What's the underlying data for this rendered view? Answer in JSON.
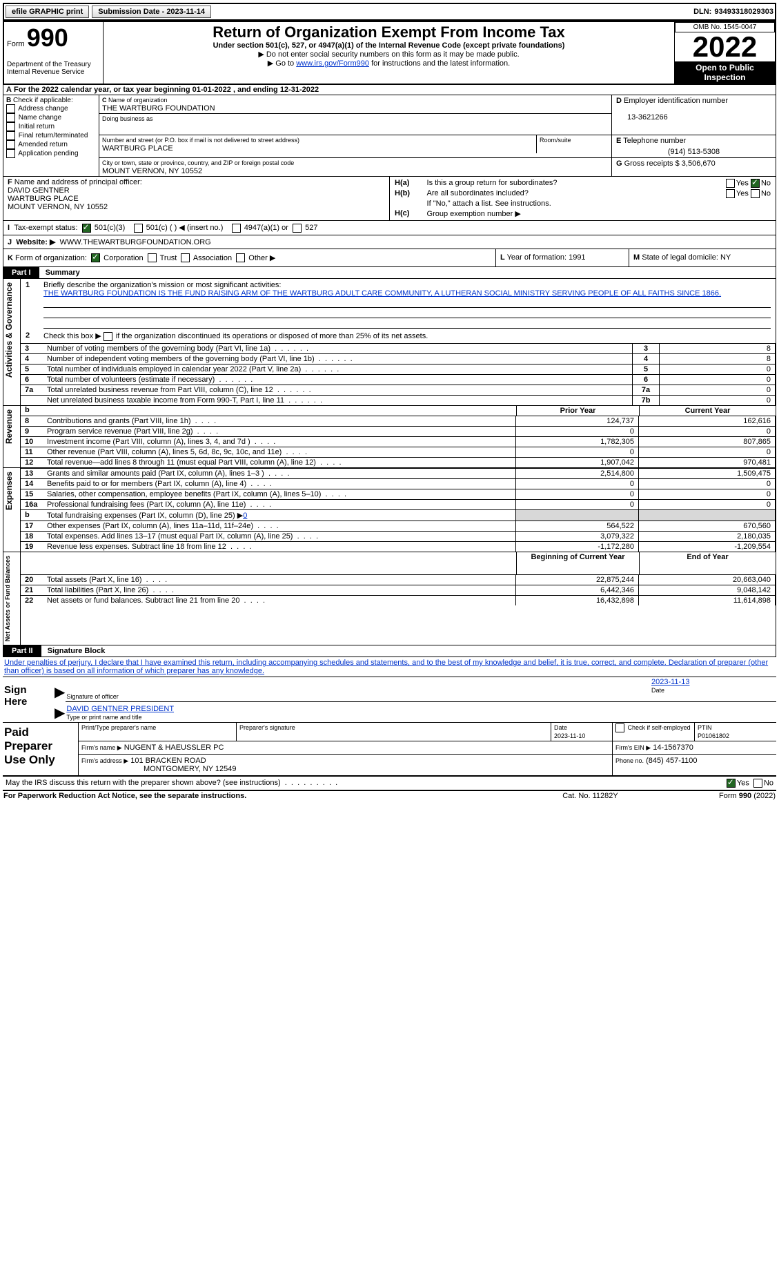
{
  "topbar": {
    "efile": "efile GRAPHIC print",
    "submission": "Submission Date - 2023-11-14",
    "dln_label": "DLN:",
    "dln": "93493318029303"
  },
  "header": {
    "form_word": "Form",
    "form_num": "990",
    "dept": "Department of the Treasury",
    "irs": "Internal Revenue Service",
    "title": "Return of Organization Exempt From Income Tax",
    "subtitle": "Under section 501(c), 527, or 4947(a)(1) of the Internal Revenue Code (except private foundations)",
    "instr1": "▶ Do not enter social security numbers on this form as it may be made public.",
    "instr2_pre": "▶ Go to ",
    "instr2_link": "www.irs.gov/Form990",
    "instr2_post": " for instructions and the latest information.",
    "omb": "OMB No. 1545-0047",
    "year": "2022",
    "inspection": "Open to Public Inspection"
  },
  "A": {
    "text_pre": "For the 2022 calendar year, or tax year beginning ",
    "begin": "01-01-2022",
    "text_mid": " , and ending ",
    "end": "12-31-2022"
  },
  "B": {
    "label": "Check if applicable:",
    "opts": [
      "Address change",
      "Name change",
      "Initial return",
      "Final return/terminated",
      "Amended return",
      "Application pending"
    ]
  },
  "C": {
    "name_label": "Name of organization",
    "name": "THE WARTBURG FOUNDATION",
    "dba_label": "Doing business as",
    "street_label": "Number and street (or P.O. box if mail is not delivered to street address)",
    "street": "WARTBURG PLACE",
    "room_label": "Room/suite",
    "city_label": "City or town, state or province, country, and ZIP or foreign postal code",
    "city": "MOUNT VERNON, NY  10552"
  },
  "D": {
    "label": "Employer identification number",
    "value": "13-3621266"
  },
  "E": {
    "label": "Telephone number",
    "value": "(914) 513-5308"
  },
  "G": {
    "label": "Gross receipts $",
    "value": "3,506,670"
  },
  "F": {
    "label": "Name and address of principal officer:",
    "name": "DAVID GENTNER",
    "street": "WARTBURG PLACE",
    "city": "MOUNT VERNON, NY  10552"
  },
  "H": {
    "a": "Is this a group return for subordinates?",
    "b": "Are all subordinates included?",
    "b_note": "If \"No,\" attach a list. See instructions.",
    "c": "Group exemption number ▶"
  },
  "I": {
    "label": "Tax-exempt status:",
    "opt1": "501(c)(3)",
    "opt2": "501(c) ( ) ◀ (insert no.)",
    "opt3": "4947(a)(1) or",
    "opt4": "527"
  },
  "J": {
    "label": "Website: ▶",
    "value": "WWW.THEWARTBURGFOUNDATION.ORG"
  },
  "K": {
    "label": "Form of organization:",
    "opts": [
      "Corporation",
      "Trust",
      "Association",
      "Other ▶"
    ]
  },
  "L": {
    "label": "Year of formation:",
    "value": "1991"
  },
  "M": {
    "label": "State of legal domicile:",
    "value": "NY"
  },
  "part1": {
    "header": "Part I",
    "title": "Summary",
    "line1_label": "Briefly describe the organization's mission or most significant activities:",
    "line1_text": "THE WARTBURG FOUNDATION IS THE FUND RAISING ARM OF THE WARTBURG ADULT CARE COMMUNITY, A LUTHERAN SOCIAL MINISTRY SERVING PEOPLE OF ALL FAITHS SINCE 1866.",
    "line2": "Check this box ▶",
    "line2_post": "if the organization discontinued its operations or disposed of more than 25% of its net assets.",
    "rows_ag": [
      {
        "n": "3",
        "t": "Number of voting members of the governing body (Part VI, line 1a)",
        "box": "3",
        "v": "8"
      },
      {
        "n": "4",
        "t": "Number of independent voting members of the governing body (Part VI, line 1b)",
        "box": "4",
        "v": "8"
      },
      {
        "n": "5",
        "t": "Total number of individuals employed in calendar year 2022 (Part V, line 2a)",
        "box": "5",
        "v": "0"
      },
      {
        "n": "6",
        "t": "Total number of volunteers (estimate if necessary)",
        "box": "6",
        "v": "0"
      },
      {
        "n": "7a",
        "t": "Total unrelated business revenue from Part VIII, column (C), line 12",
        "box": "7a",
        "v": "0"
      },
      {
        "n": "",
        "t": "Net unrelated business taxable income from Form 990-T, Part I, line 11",
        "box": "7b",
        "v": "0"
      }
    ],
    "col_prior": "Prior Year",
    "col_current": "Current Year",
    "rows_rev": [
      {
        "n": "8",
        "t": "Contributions and grants (Part VIII, line 1h)",
        "p": "124,737",
        "c": "162,616"
      },
      {
        "n": "9",
        "t": "Program service revenue (Part VIII, line 2g)",
        "p": "0",
        "c": "0"
      },
      {
        "n": "10",
        "t": "Investment income (Part VIII, column (A), lines 3, 4, and 7d )",
        "p": "1,782,305",
        "c": "807,865"
      },
      {
        "n": "11",
        "t": "Other revenue (Part VIII, column (A), lines 5, 6d, 8c, 9c, 10c, and 11e)",
        "p": "0",
        "c": "0"
      },
      {
        "n": "12",
        "t": "Total revenue—add lines 8 through 11 (must equal Part VIII, column (A), line 12)",
        "p": "1,907,042",
        "c": "970,481"
      }
    ],
    "rows_exp": [
      {
        "n": "13",
        "t": "Grants and similar amounts paid (Part IX, column (A), lines 1–3 )",
        "p": "2,514,800",
        "c": "1,509,475"
      },
      {
        "n": "14",
        "t": "Benefits paid to or for members (Part IX, column (A), line 4)",
        "p": "0",
        "c": "0"
      },
      {
        "n": "15",
        "t": "Salaries, other compensation, employee benefits (Part IX, column (A), lines 5–10)",
        "p": "0",
        "c": "0"
      },
      {
        "n": "16a",
        "t": "Professional fundraising fees (Part IX, column (A), line 11e)",
        "p": "0",
        "c": "0"
      },
      {
        "n": "b",
        "t": "Total fundraising expenses (Part IX, column (D), line 25) ▶",
        "fundraise": "0",
        "shaded": true
      },
      {
        "n": "17",
        "t": "Other expenses (Part IX, column (A), lines 11a–11d, 11f–24e)",
        "p": "564,522",
        "c": "670,560"
      },
      {
        "n": "18",
        "t": "Total expenses. Add lines 13–17 (must equal Part IX, column (A), line 25)",
        "p": "3,079,322",
        "c": "2,180,035"
      },
      {
        "n": "19",
        "t": "Revenue less expenses. Subtract line 18 from line 12",
        "p": "-1,172,280",
        "c": "-1,209,554"
      }
    ],
    "col_boy": "Beginning of Current Year",
    "col_eoy": "End of Year",
    "rows_na": [
      {
        "n": "20",
        "t": "Total assets (Part X, line 16)",
        "p": "22,875,244",
        "c": "20,663,040"
      },
      {
        "n": "21",
        "t": "Total liabilities (Part X, line 26)",
        "p": "6,442,346",
        "c": "9,048,142"
      },
      {
        "n": "22",
        "t": "Net assets or fund balances. Subtract line 21 from line 20",
        "p": "16,432,898",
        "c": "11,614,898"
      }
    ],
    "vlabels": {
      "ag": "Activities & Governance",
      "rev": "Revenue",
      "exp": "Expenses",
      "na": "Net Assets or Fund Balances"
    }
  },
  "part2": {
    "header": "Part II",
    "title": "Signature Block",
    "penalty": "Under penalties of perjury, I declare that I have examined this return, including accompanying schedules and statements, and to the best of my knowledge and belief, it is true, correct, and complete. Declaration of preparer (other than officer) is based on all information of which preparer has any knowledge.",
    "sign_here": "Sign Here",
    "sig_officer": "Signature of officer",
    "sig_date": "2023-11-13",
    "date_label": "Date",
    "officer_name": "DAVID GENTNER  PRESIDENT",
    "name_title": "Type or print name and title",
    "paid": "Paid Preparer Use Only",
    "prep_name_label": "Print/Type preparer's name",
    "prep_sig_label": "Preparer's signature",
    "prep_date": "2023-11-10",
    "check_self": "Check",
    "check_self2": "if self-employed",
    "ptin_label": "PTIN",
    "ptin": "P01061802",
    "firm_name_label": "Firm's name    ▶",
    "firm_name": "NUGENT & HAEUSSLER PC",
    "firm_ein_label": "Firm's EIN ▶",
    "firm_ein": "14-1567370",
    "firm_addr_label": "Firm's address ▶",
    "firm_addr1": "101 BRACKEN ROAD",
    "firm_addr2": "MONTGOMERY, NY  12549",
    "phone_label": "Phone no.",
    "phone": "(845) 457-1100",
    "may_irs": "May the IRS discuss this return with the preparer shown above? (see instructions)",
    "paperwork": "For Paperwork Reduction Act Notice, see the separate instructions.",
    "catno": "Cat. No. 11282Y",
    "formfoot": "Form 990 (2022)"
  }
}
